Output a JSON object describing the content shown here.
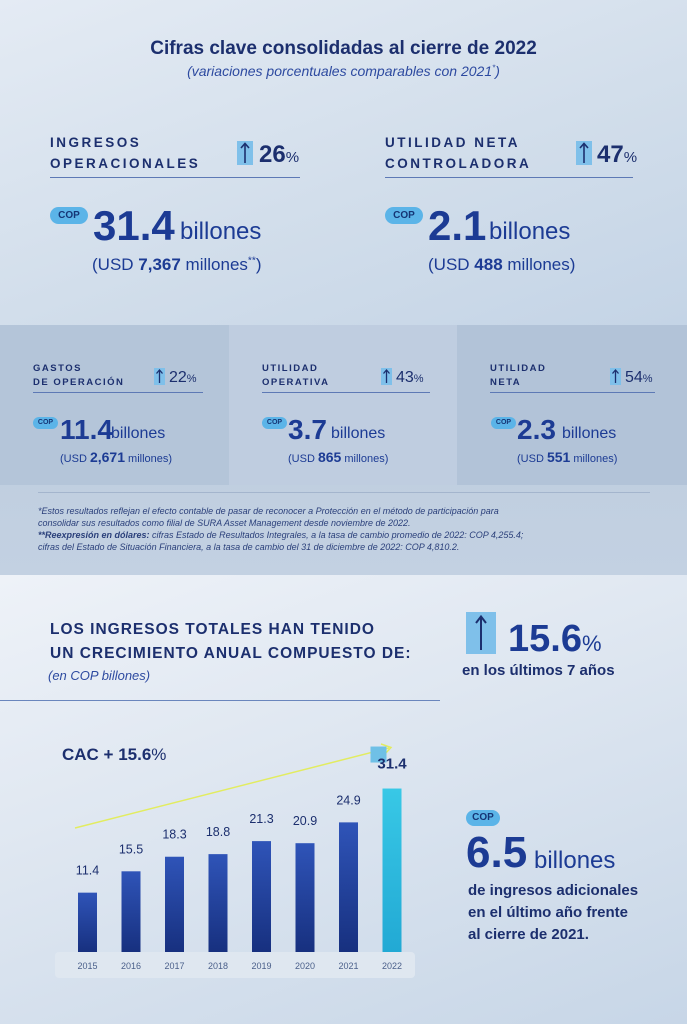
{
  "header": {
    "title": "Cifras clave consolidadas al cierre de 2022",
    "subtitle": "(variaciones porcentuales comparables con 2021",
    "subtitle_sup": "*",
    "subtitle_end": ")"
  },
  "main_kpis": [
    {
      "label_1": "INGRESOS",
      "label_2": "OPERACIONALES",
      "pct": "26",
      "pct_sym": "%",
      "badge": "COP",
      "value": "31.4",
      "unit": "billones",
      "usd_pre": "(USD ",
      "usd_val": "7,367",
      "usd_post": " millones",
      "usd_sup": "**",
      "usd_end": ")"
    },
    {
      "label_1": "UTILIDAD NETA",
      "label_2": "CONTROLADORA",
      "pct": "47",
      "pct_sym": "%",
      "badge": "COP",
      "value": "2.1",
      "unit": "billones",
      "usd_pre": "(USD ",
      "usd_val": "488",
      "usd_post": " millones",
      "usd_end": ")"
    }
  ],
  "secondary_kpis": [
    {
      "label_1": "GASTOS",
      "label_2": "DE OPERACIÓN",
      "pct": "22",
      "pct_sym": "%",
      "badge": "COP",
      "value": "11.4",
      "unit": "billones",
      "usd_pre": "(USD ",
      "usd_val": "2,671",
      "usd_post": " millones)"
    },
    {
      "label_1": "UTILIDAD",
      "label_2": "OPERATIVA",
      "pct": "43",
      "pct_sym": "%",
      "badge": "COP",
      "value": "3.7",
      "unit": "billones",
      "usd_pre": "(USD ",
      "usd_val": "865",
      "usd_post": " millones)"
    },
    {
      "label_1": "UTILIDAD",
      "label_2": "NETA",
      "pct": "54",
      "pct_sym": "%",
      "badge": "COP",
      "value": "2.3",
      "unit": "billones",
      "usd_pre": "(USD ",
      "usd_val": "551",
      "usd_post": " millones)"
    }
  ],
  "notes": {
    "line1": "*Estos resultados reflejan el efecto contable de pasar de reconocer a Protección en el método de participación para",
    "line2": "consolidar sus resultados como filial de SURA Asset Management desde noviembre de 2022.",
    "line3_bold": "**Reexpresión en dólares:",
    "line3": " cifras Estado de Resultados Integrales, a la tasa de cambio promedio de 2022: COP 4,255.4;",
    "line4": "cifras del Estado de Situación Financiera, a la tasa de cambio del 31 de diciembre de 2022: COP 4,810.2."
  },
  "growth": {
    "heading_1": "LOS INGRESOS TOTALES HAN TENIDO",
    "heading_2": "UN CRECIMIENTO ANUAL COMPUESTO DE:",
    "sub": "(en COP billones)",
    "pct": "15.6",
    "pct_sym": "%",
    "note": "en los últimos 7 años",
    "cac": "CAC + 15.6",
    "cac_sym": "%"
  },
  "chart_data": {
    "type": "bar",
    "categories": [
      "2015",
      "2016",
      "2017",
      "2018",
      "2019",
      "2020",
      "2021",
      "2022"
    ],
    "values": [
      11.4,
      15.5,
      18.3,
      18.8,
      21.3,
      20.9,
      24.9,
      31.4
    ],
    "value_labels": [
      "11.4",
      "15.5",
      "18.3",
      "18.8",
      "21.3",
      "20.9",
      "24.9",
      "31.4"
    ],
    "ylim": [
      0,
      34
    ],
    "grid": false,
    "colors": {
      "bar": "#1c3b94",
      "bar_top": "#2f54b8",
      "highlight": "#2ec0e0",
      "trend": "#e2ec60"
    }
  },
  "side": {
    "badge": "COP",
    "value": "6.5",
    "unit": "billones",
    "line1": "de ingresos adicionales",
    "line2": "en el último año frente",
    "line3": "al cierre de 2021."
  }
}
